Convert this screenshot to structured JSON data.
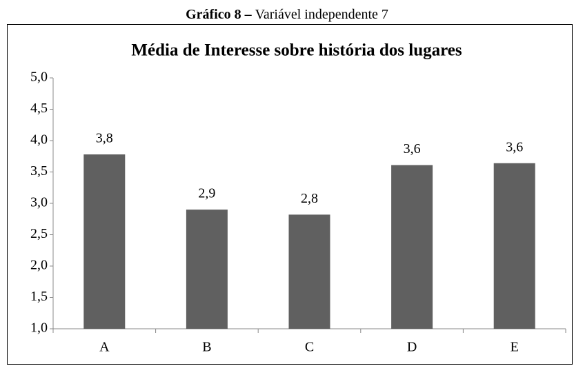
{
  "chart_data": {
    "type": "bar",
    "caption_label": "Gráfico 8 –",
    "caption": "Variável independente 7",
    "title": "Média de Interesse sobre história dos lugares",
    "categories": [
      "A",
      "B",
      "C",
      "D",
      "E"
    ],
    "values": [
      3.78,
      2.9,
      2.82,
      3.61,
      3.64
    ],
    "value_labels": [
      "3,8",
      "2,9",
      "2,8",
      "3,6",
      "3,6"
    ],
    "color": "#606060",
    "ylim": [
      1,
      5
    ],
    "yticks": [
      {
        "value": 1,
        "label": "1,0"
      },
      {
        "value": 1.5,
        "label": "1,5"
      },
      {
        "value": 2,
        "label": "2,0"
      },
      {
        "value": 2.5,
        "label": "2,5"
      },
      {
        "value": 3,
        "label": "3,0"
      },
      {
        "value": 3.5,
        "label": "3,5"
      },
      {
        "value": 4,
        "label": "4,0"
      },
      {
        "value": 4.5,
        "label": "4,5"
      },
      {
        "value": 5,
        "label": "5,0"
      }
    ],
    "grid": false
  }
}
